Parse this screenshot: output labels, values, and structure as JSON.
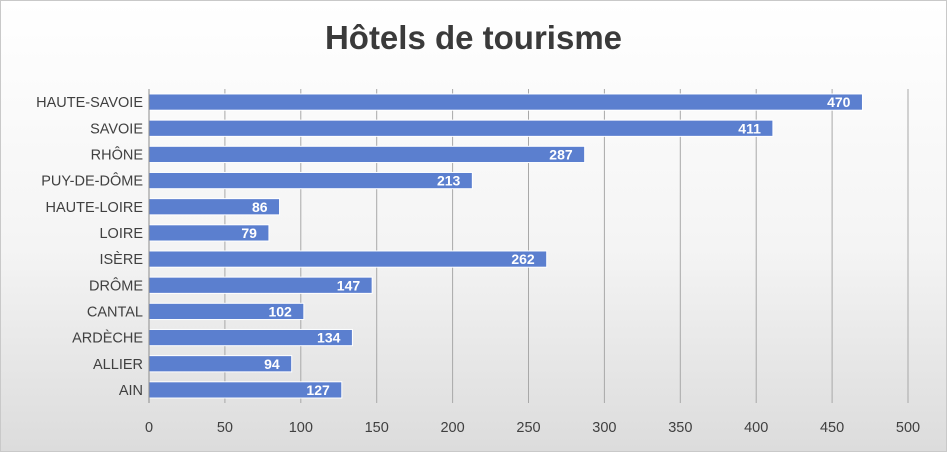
{
  "chart_data": {
    "type": "bar",
    "orientation": "horizontal",
    "title": "Hôtels de tourisme",
    "categories": [
      "AIN",
      "ALLIER",
      "ARDÈCHE",
      "CANTAL",
      "DRÔME",
      "ISÈRE",
      "LOIRE",
      "HAUTE-LOIRE",
      "PUY-DE-DÔME",
      "RHÔNE",
      "SAVOIE",
      "HAUTE-SAVOIE"
    ],
    "values": [
      127,
      94,
      134,
      102,
      147,
      262,
      79,
      86,
      213,
      287,
      411,
      470
    ],
    "xlim": [
      0,
      500
    ],
    "xticks": [
      0,
      50,
      100,
      150,
      200,
      250,
      300,
      350,
      400,
      450,
      500
    ],
    "grid": "vertical",
    "legend": "none",
    "data_labels": true,
    "bar_color": "#5b7fcf",
    "bar_border": "#ffffff",
    "grid_color": "#a8a8a8"
  }
}
